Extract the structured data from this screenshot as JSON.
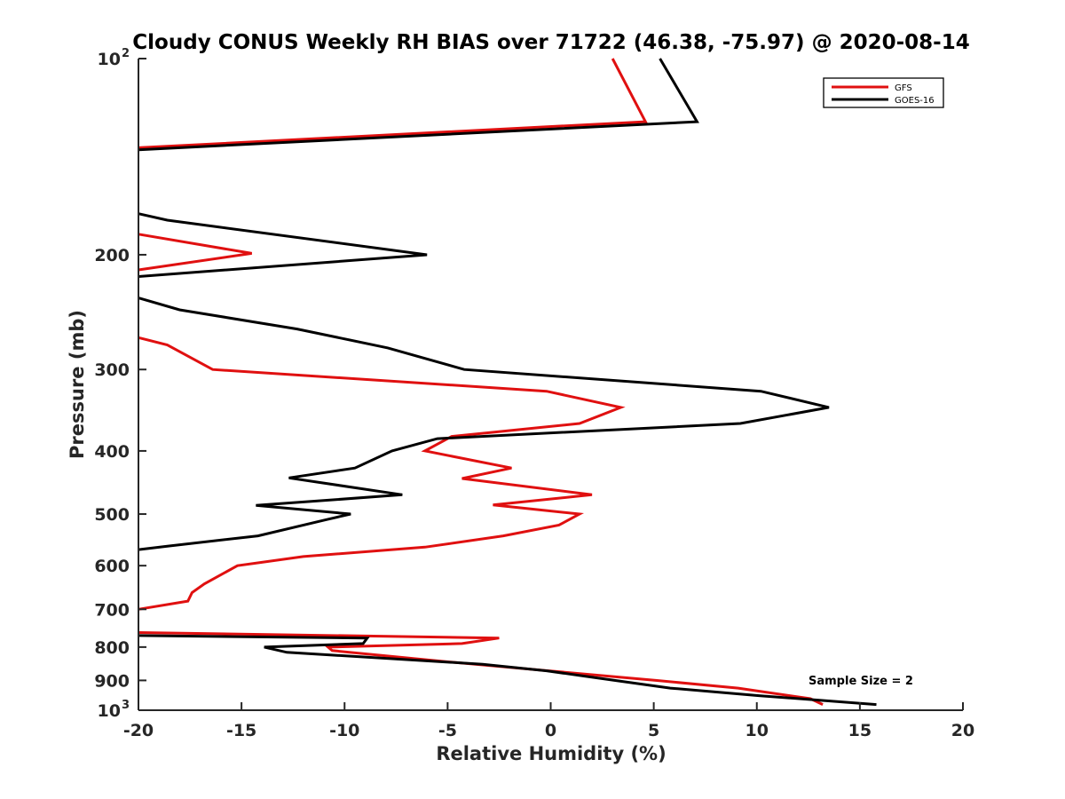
{
  "chart_data": {
    "type": "line",
    "title": "Cloudy CONUS Weekly RH BIAS over 71722 (46.38, -75.97) @ 2020-08-14",
    "xlabel": "Relative Humidity (%)",
    "ylabel": "Pressure (mb)",
    "xlim": [
      -20,
      20
    ],
    "ylim": [
      100,
      1000
    ],
    "yscale": "log",
    "yreversed": true,
    "grid": false,
    "x_ticks": [
      "-20",
      "-15",
      "-10",
      "-5",
      "0",
      "5",
      "10",
      "15",
      "20"
    ],
    "y_ticks": [
      {
        "value": 100,
        "label": "10",
        "sup": "2"
      },
      {
        "value": 200,
        "label": "200",
        "sup": ""
      },
      {
        "value": 300,
        "label": "300",
        "sup": ""
      },
      {
        "value": 400,
        "label": "400",
        "sup": ""
      },
      {
        "value": 500,
        "label": "500",
        "sup": ""
      },
      {
        "value": 600,
        "label": "600",
        "sup": ""
      },
      {
        "value": 700,
        "label": "700",
        "sup": ""
      },
      {
        "value": 800,
        "label": "800",
        "sup": ""
      },
      {
        "value": 900,
        "label": "900",
        "sup": ""
      },
      {
        "value": 1000,
        "label": "10",
        "sup": "3"
      }
    ],
    "legend_position": "top-right",
    "annotation": "Sample Size = 2",
    "series": [
      {
        "name": "GFS",
        "color": "#e01010",
        "segments": [
          [
            [
              3.0,
              100
            ],
            [
              4.6,
              125
            ],
            [
              -20,
              137
            ]
          ],
          [
            [
              -20,
              186
            ],
            [
              -14.5,
              199
            ],
            [
              -20,
              211
            ]
          ],
          [
            [
              -20,
              268
            ],
            [
              -18.6,
              275
            ],
            [
              -16.4,
              300
            ],
            [
              -0.2,
              324
            ],
            [
              3.4,
              343
            ],
            [
              1.4,
              363
            ],
            [
              -4.8,
              380
            ],
            [
              -6.1,
              400
            ],
            [
              -1.9,
              425
            ],
            [
              -4.3,
              441
            ],
            [
              2.0,
              467
            ],
            [
              -2.8,
              484
            ],
            [
              1.4,
              500
            ],
            [
              0.4,
              520
            ],
            [
              -2.3,
              540
            ],
            [
              -6.1,
              562
            ],
            [
              -12.0,
              581
            ],
            [
              -15.2,
              600
            ],
            [
              -16.8,
              640
            ],
            [
              -17.4,
              660
            ],
            [
              -17.6,
              680
            ],
            [
              -20,
              700
            ]
          ],
          [
            [
              -20,
              760
            ],
            [
              -2.5,
              775
            ],
            [
              -4.3,
              790
            ],
            [
              -10.8,
              800
            ],
            [
              -10.6,
              810
            ],
            [
              -5.5,
              840
            ],
            [
              -0.1,
              870
            ],
            [
              5.1,
              900
            ],
            [
              9.1,
              925
            ],
            [
              12.6,
              960
            ],
            [
              13.2,
              980
            ]
          ]
        ]
      },
      {
        "name": "GOES-16",
        "color": "#000000",
        "segments": [
          [
            [
              5.3,
              100
            ],
            [
              7.1,
              125
            ],
            [
              -20,
              138
            ]
          ],
          [
            [
              -20,
              173
            ],
            [
              -18.6,
              177
            ],
            [
              -6.0,
              200
            ],
            [
              -20,
              216
            ]
          ],
          [
            [
              -20,
              233
            ],
            [
              -18.0,
              243
            ],
            [
              -12.3,
              260
            ],
            [
              -7.9,
              278
            ],
            [
              -4.2,
              300
            ],
            [
              10.2,
              324
            ],
            [
              13.5,
              343
            ],
            [
              9.2,
              363
            ],
            [
              -5.5,
              383
            ],
            [
              -7.7,
              400
            ],
            [
              -9.5,
              425
            ],
            [
              -12.7,
              440
            ],
            [
              -7.2,
              467
            ],
            [
              -14.3,
              485
            ],
            [
              -9.7,
              500
            ],
            [
              -10.9,
              510
            ],
            [
              -14.2,
              540
            ],
            [
              -18.6,
              560
            ],
            [
              -20,
              567
            ]
          ],
          [
            [
              -20,
              768
            ],
            [
              -8.9,
              775
            ],
            [
              -9.1,
              790
            ],
            [
              -13.9,
              800
            ],
            [
              -12.8,
              815
            ],
            [
              -3.3,
              850
            ],
            [
              -0.2,
              870
            ],
            [
              3.1,
              900
            ],
            [
              5.8,
              925
            ],
            [
              10.1,
              950
            ],
            [
              15.8,
              980
            ]
          ]
        ]
      }
    ]
  }
}
